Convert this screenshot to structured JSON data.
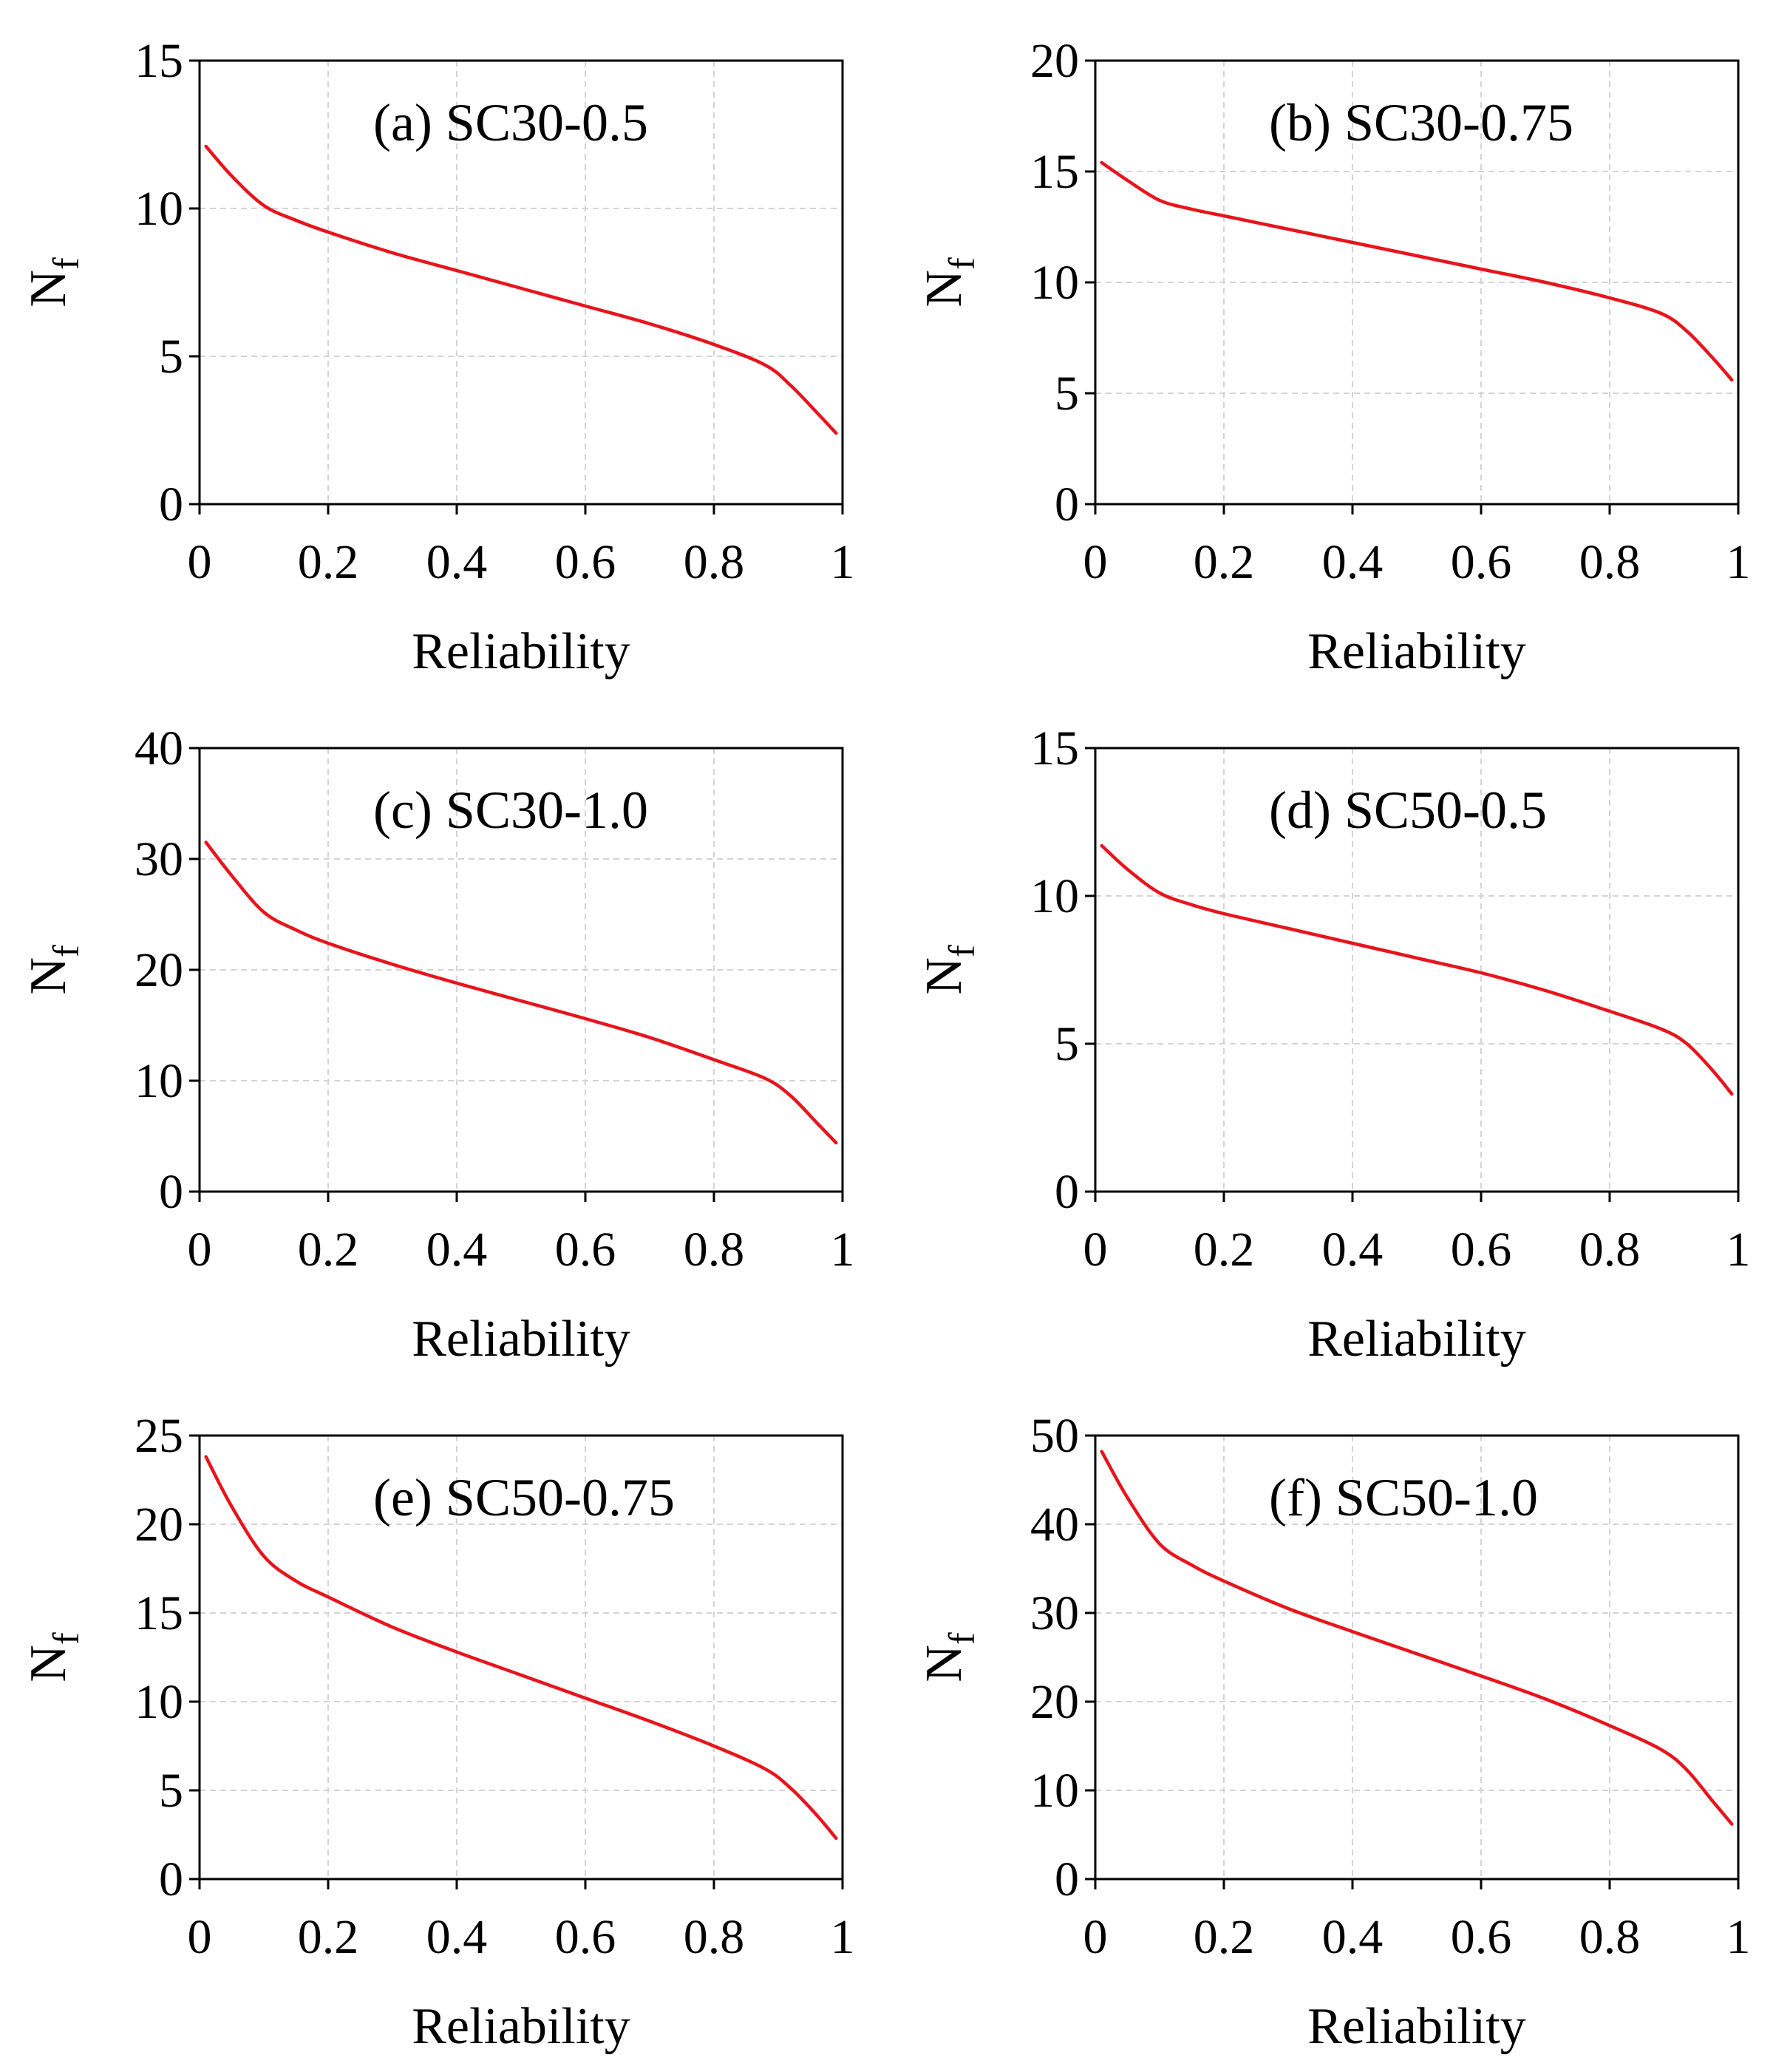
{
  "figure": {
    "background": "#ffffff",
    "line_color": "#e8141c",
    "grid_color": "#d4d4d4"
  },
  "chart_data": [
    {
      "type": "line",
      "title": "(a) SC30-0.5",
      "xlabel": "Reliability",
      "ylabel": "N",
      "ylabel_sub": "f",
      "xlim": [
        0,
        1
      ],
      "ylim": [
        0,
        15
      ],
      "xticks": [
        0,
        0.2,
        0.4,
        0.6,
        0.8,
        1
      ],
      "xtick_labels": [
        "0",
        "0.2",
        "0.4",
        "0.6",
        "0.8",
        "1"
      ],
      "yticks": [
        0,
        5,
        10,
        15
      ],
      "ytick_labels": [
        "0",
        "5",
        "10",
        "15"
      ],
      "grid": true,
      "series": [
        {
          "name": "SC30-0.5",
          "x": [
            0.01,
            0.05,
            0.1,
            0.15,
            0.2,
            0.3,
            0.4,
            0.5,
            0.6,
            0.7,
            0.8,
            0.88,
            0.92,
            0.96,
            0.99
          ],
          "y": [
            12.1,
            11.1,
            10.1,
            9.6,
            9.2,
            8.5,
            7.9,
            7.3,
            6.7,
            6.1,
            5.4,
            4.7,
            4.0,
            3.1,
            2.4
          ]
        }
      ]
    },
    {
      "type": "line",
      "title": "(b) SC30-0.75",
      "xlabel": "Reliability",
      "ylabel": "N",
      "ylabel_sub": "f",
      "xlim": [
        0,
        1
      ],
      "ylim": [
        0,
        20
      ],
      "xticks": [
        0,
        0.2,
        0.4,
        0.6,
        0.8,
        1
      ],
      "xtick_labels": [
        "0",
        "0.2",
        "0.4",
        "0.6",
        "0.8",
        "1"
      ],
      "yticks": [
        0,
        5,
        10,
        15,
        20
      ],
      "ytick_labels": [
        "0",
        "5",
        "10",
        "15",
        "20"
      ],
      "grid": true,
      "series": [
        {
          "name": "SC30-0.75",
          "x": [
            0.01,
            0.05,
            0.1,
            0.15,
            0.2,
            0.3,
            0.4,
            0.5,
            0.6,
            0.7,
            0.8,
            0.88,
            0.92,
            0.96,
            0.99
          ],
          "y": [
            15.4,
            14.6,
            13.7,
            13.3,
            13.0,
            12.4,
            11.8,
            11.2,
            10.6,
            10.0,
            9.3,
            8.6,
            7.8,
            6.6,
            5.6
          ]
        }
      ]
    },
    {
      "type": "line",
      "title": "(c) SC30-1.0",
      "xlabel": "Reliability",
      "ylabel": "N",
      "ylabel_sub": "f",
      "xlim": [
        0,
        1
      ],
      "ylim": [
        0,
        40
      ],
      "xticks": [
        0,
        0.2,
        0.4,
        0.6,
        0.8,
        1
      ],
      "xtick_labels": [
        "0",
        "0.2",
        "0.4",
        "0.6",
        "0.8",
        "1"
      ],
      "yticks": [
        0,
        10,
        20,
        30,
        40
      ],
      "ytick_labels": [
        "0",
        "10",
        "20",
        "30",
        "40"
      ],
      "grid": true,
      "series": [
        {
          "name": "SC30-1.0",
          "x": [
            0.01,
            0.05,
            0.1,
            0.15,
            0.2,
            0.3,
            0.4,
            0.5,
            0.6,
            0.7,
            0.8,
            0.88,
            0.92,
            0.96,
            0.99
          ],
          "y": [
            31.5,
            28.5,
            25.2,
            23.6,
            22.4,
            20.5,
            18.8,
            17.2,
            15.6,
            13.9,
            11.9,
            10.2,
            8.6,
            6.2,
            4.4
          ]
        }
      ]
    },
    {
      "type": "line",
      "title": "(d) SC50-0.5",
      "xlabel": "Reliability",
      "ylabel": "N",
      "ylabel_sub": "f",
      "xlim": [
        0,
        1
      ],
      "ylim": [
        0,
        15
      ],
      "xticks": [
        0,
        0.2,
        0.4,
        0.6,
        0.8,
        1
      ],
      "xtick_labels": [
        "0",
        "0.2",
        "0.4",
        "0.6",
        "0.8",
        "1"
      ],
      "yticks": [
        0,
        5,
        10,
        15
      ],
      "ytick_labels": [
        "0",
        "5",
        "10",
        "15"
      ],
      "grid": true,
      "series": [
        {
          "name": "SC50-0.5",
          "x": [
            0.01,
            0.05,
            0.1,
            0.15,
            0.2,
            0.3,
            0.4,
            0.5,
            0.6,
            0.7,
            0.8,
            0.88,
            0.92,
            0.96,
            0.99
          ],
          "y": [
            11.7,
            10.9,
            10.1,
            9.7,
            9.4,
            8.9,
            8.4,
            7.9,
            7.4,
            6.8,
            6.1,
            5.5,
            5.0,
            4.1,
            3.3
          ]
        }
      ]
    },
    {
      "type": "line",
      "title": "(e) SC50-0.75",
      "xlabel": "Reliability",
      "ylabel": "N",
      "ylabel_sub": "f",
      "xlim": [
        0,
        1
      ],
      "ylim": [
        0,
        25
      ],
      "xticks": [
        0,
        0.2,
        0.4,
        0.6,
        0.8,
        1
      ],
      "xtick_labels": [
        "0",
        "0.2",
        "0.4",
        "0.6",
        "0.8",
        "1"
      ],
      "yticks": [
        0,
        5,
        10,
        15,
        20,
        25
      ],
      "ytick_labels": [
        "0",
        "5",
        "10",
        "15",
        "20",
        "25"
      ],
      "grid": true,
      "series": [
        {
          "name": "SC50-0.75",
          "x": [
            0.01,
            0.05,
            0.1,
            0.15,
            0.2,
            0.3,
            0.4,
            0.5,
            0.6,
            0.7,
            0.8,
            0.88,
            0.92,
            0.96,
            0.99
          ],
          "y": [
            23.8,
            21.0,
            18.2,
            16.8,
            15.9,
            14.2,
            12.8,
            11.5,
            10.2,
            8.9,
            7.5,
            6.2,
            5.1,
            3.6,
            2.3
          ]
        }
      ]
    },
    {
      "type": "line",
      "title": "(f) SC50-1.0",
      "xlabel": "Reliability",
      "ylabel": "N",
      "ylabel_sub": "f",
      "xlim": [
        0,
        1
      ],
      "ylim": [
        0,
        50
      ],
      "xticks": [
        0,
        0.2,
        0.4,
        0.6,
        0.8,
        1
      ],
      "xtick_labels": [
        "0",
        "0.2",
        "0.4",
        "0.6",
        "0.8",
        "1"
      ],
      "yticks": [
        0,
        10,
        20,
        30,
        40,
        50
      ],
      "ytick_labels": [
        "0",
        "10",
        "20",
        "30",
        "40",
        "50"
      ],
      "grid": true,
      "series": [
        {
          "name": "SC50-1.0",
          "x": [
            0.01,
            0.05,
            0.1,
            0.15,
            0.2,
            0.3,
            0.4,
            0.5,
            0.6,
            0.7,
            0.8,
            0.88,
            0.92,
            0.96,
            0.99
          ],
          "y": [
            48.2,
            43.0,
            37.8,
            35.4,
            33.6,
            30.5,
            27.9,
            25.4,
            22.9,
            20.3,
            17.3,
            14.6,
            12.3,
            8.8,
            6.2
          ]
        }
      ]
    }
  ]
}
